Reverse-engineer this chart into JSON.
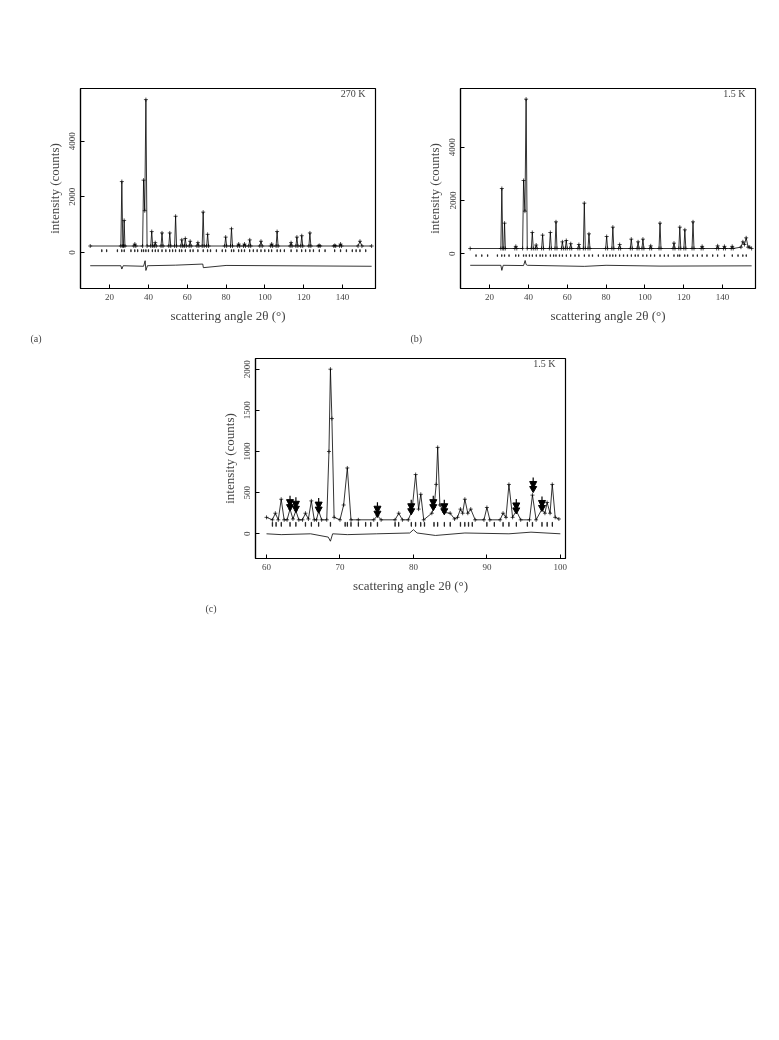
{
  "chart_data": [
    {
      "type": "line",
      "xlabel": "scattering angle 2θ (°)",
      "ylabel": "intensity (counts)",
      "annotations": [
        "270 K",
        "(a)"
      ],
      "xlim": [
        5,
        157
      ],
      "ylim": [
        -1300,
        5900
      ],
      "xticks": [
        20,
        40,
        60,
        80,
        100,
        120,
        140
      ],
      "yticks": [
        0,
        2000,
        4000
      ],
      "grid": false,
      "series": [
        {
          "marker": "cross",
          "color": "#000000",
          "x": [
            10,
            25.8,
            26.3,
            26.8,
            27.1,
            27.5,
            27.9,
            32.5,
            33,
            33.5,
            37,
            37.5,
            38.1,
            38.7,
            39.3,
            41.2,
            41.7,
            42.2,
            43,
            43.5,
            44,
            46.5,
            47,
            47.5,
            50.5,
            51,
            51.5,
            53.5,
            54,
            54.5,
            56.7,
            57.2,
            57.7,
            58.5,
            59,
            59.5,
            61,
            61.5,
            62,
            65,
            65.5,
            66,
            67.7,
            68.2,
            68.7,
            70,
            70.5,
            71,
            79.3,
            79.8,
            80.3,
            82.3,
            82.8,
            83.3,
            86,
            86.5,
            87,
            89,
            89.5,
            90,
            91.7,
            92.2,
            92.7,
            97.4,
            98,
            98.6,
            103,
            103.5,
            104,
            105.8,
            106.3,
            106.8,
            113,
            113.5,
            114,
            116,
            116.5,
            117,
            118.5,
            119,
            119.5,
            122.7,
            123.2,
            123.7,
            127.5,
            128,
            128.5,
            135.5,
            136,
            136.5,
            138.5,
            139,
            139.5,
            148,
            149,
            150,
            155
          ],
          "values": [
            230,
            230,
            2550,
            230,
            230,
            1150,
            230,
            230,
            300,
            230,
            230,
            2600,
            1500,
            5500,
            230,
            230,
            750,
            230,
            230,
            350,
            230,
            230,
            700,
            230,
            230,
            700,
            230,
            230,
            1300,
            230,
            230,
            450,
            230,
            230,
            500,
            230,
            230,
            400,
            230,
            230,
            350,
            230,
            230,
            1450,
            230,
            230,
            650,
            230,
            230,
            550,
            230,
            230,
            850,
            230,
            230,
            300,
            230,
            230,
            300,
            230,
            230,
            450,
            230,
            230,
            400,
            230,
            230,
            300,
            230,
            230,
            750,
            230,
            230,
            350,
            230,
            230,
            550,
            230,
            230,
            600,
            230,
            230,
            700,
            230,
            230,
            250,
            230,
            230,
            250,
            230,
            230,
            300,
            230,
            230,
            400,
            230,
            230
          ]
        },
        {
          "type": "bar",
          "color": "#000000",
          "x": [
            16,
            18.5,
            24,
            26.3,
            27.5,
            31,
            33,
            34.5,
            36.5,
            37.5,
            38.7,
            40,
            42,
            43.5,
            45,
            47,
            49,
            51,
            52.5,
            54,
            56,
            57.2,
            59,
            61.5,
            63,
            65.5,
            68.2,
            70.5,
            72,
            75,
            78,
            79.8,
            82.8,
            84,
            86.5,
            88,
            89.5,
            92.2,
            94,
            96,
            98,
            100,
            102,
            103.5,
            106.3,
            108,
            110,
            113.5,
            116.5,
            119,
            121,
            123.2,
            125,
            128,
            131,
            136,
            139,
            142,
            145,
            147,
            149,
            152
          ],
          "values": [
            80,
            80,
            80,
            80,
            80,
            80,
            80,
            80,
            80,
            80,
            80,
            80,
            80,
            80,
            80,
            80,
            80,
            80,
            80,
            80,
            80,
            80,
            80,
            80,
            80,
            80,
            80,
            80,
            80,
            80,
            80,
            80,
            80,
            80,
            80,
            80,
            80,
            80,
            80,
            80,
            80,
            80,
            80,
            80,
            80,
            80,
            80,
            80,
            80,
            80,
            80,
            80,
            80,
            80,
            80,
            80,
            80,
            80,
            80,
            80,
            80,
            80
          ],
          "base": [
            20,
            20,
            20,
            20,
            20,
            20,
            20,
            20,
            20,
            20,
            20,
            20,
            20,
            20,
            20,
            20,
            20,
            20,
            20,
            20,
            20,
            20,
            20,
            20,
            20,
            20,
            20,
            20,
            20,
            20,
            20,
            20,
            20,
            20,
            20,
            20,
            20,
            20,
            20,
            20,
            20,
            20,
            20,
            20,
            20,
            20,
            20,
            20,
            20,
            20,
            20,
            20,
            20,
            20,
            20,
            20,
            20,
            20,
            20,
            20,
            20,
            20
          ]
        },
        {
          "marker": "none",
          "color": "#000000",
          "x": [
            10,
            25.8,
            26.3,
            27,
            37.5,
            38.3,
            38.7,
            39.5,
            54,
            68,
            68.3,
            80,
            155
          ],
          "values": [
            -480,
            -480,
            -600,
            -480,
            -500,
            -300,
            -650,
            -480,
            -460,
            -420,
            -550,
            -470,
            -500
          ]
        }
      ]
    },
    {
      "type": "line",
      "xlabel": "scattering angle 2θ (°)",
      "ylabel": "intensity (counts)",
      "annotations": [
        "1.5 K",
        "(b)"
      ],
      "xlim": [
        5,
        157
      ],
      "ylim": [
        -1300,
        6200
      ],
      "xticks": [
        20,
        40,
        60,
        80,
        100,
        120,
        140
      ],
      "yticks": [
        0,
        2000,
        4000
      ],
      "grid": false,
      "series": [
        {
          "marker": "cross",
          "color": "#000000",
          "x": [
            10,
            25.8,
            26.3,
            26.8,
            27.3,
            27.7,
            28.1,
            33,
            33.5,
            34,
            37,
            37.5,
            38.2,
            38.8,
            39.4,
            41.5,
            42,
            42.5,
            43.5,
            44,
            44.5,
            46.8,
            47.3,
            47.8,
            50.8,
            51.3,
            51.8,
            53.7,
            54.2,
            54.7,
            57,
            57.5,
            58,
            59,
            59.5,
            60,
            61.3,
            61.8,
            62.3,
            65.5,
            66,
            66.5,
            68.3,
            68.8,
            69.3,
            70.7,
            71.2,
            71.7,
            79.8,
            80.3,
            80.8,
            83,
            83.5,
            84,
            86.5,
            87,
            87.5,
            92.5,
            93,
            93.5,
            96,
            96.5,
            97,
            98.5,
            99,
            99.5,
            102.5,
            103,
            103.5,
            107.3,
            107.8,
            108.3,
            114.5,
            115,
            115.5,
            117.5,
            118,
            118.5,
            120.1,
            120.6,
            121.1,
            124.3,
            124.8,
            125.3,
            129,
            129.5,
            130,
            137,
            137.5,
            138,
            140.5,
            141,
            141.5,
            144.5,
            145,
            145.5,
            149.5,
            150.5,
            151.3,
            152.2,
            153.2,
            154,
            155
          ],
          "values": [
            200,
            200,
            2450,
            200,
            200,
            1150,
            200,
            200,
            280,
            200,
            200,
            2750,
            1600,
            5800,
            200,
            200,
            800,
            200,
            200,
            330,
            200,
            200,
            700,
            200,
            200,
            800,
            200,
            200,
            1200,
            200,
            200,
            450,
            200,
            200,
            500,
            200,
            200,
            380,
            200,
            200,
            350,
            200,
            200,
            1900,
            200,
            200,
            750,
            200,
            200,
            650,
            200,
            200,
            1000,
            200,
            200,
            350,
            200,
            200,
            550,
            200,
            200,
            450,
            200,
            200,
            550,
            200,
            200,
            300,
            200,
            200,
            1150,
            200,
            200,
            400,
            200,
            200,
            1000,
            200,
            200,
            900,
            200,
            200,
            1200,
            200,
            200,
            280,
            200,
            200,
            300,
            200,
            200,
            280,
            200,
            200,
            280,
            200,
            250,
            450,
            350,
            600,
            250,
            250,
            200
          ]
        },
        {
          "type": "bar",
          "color": "#000000",
          "x": [
            13,
            16,
            19,
            24,
            26.3,
            27.7,
            30,
            33.5,
            35,
            37.5,
            38.8,
            40.5,
            42,
            44,
            46,
            47.3,
            49,
            51.3,
            53,
            54.2,
            56,
            57.5,
            59.5,
            61.8,
            64,
            66,
            68.8,
            71.2,
            73,
            76,
            78.5,
            80.3,
            82,
            83.5,
            85,
            87,
            89,
            91,
            93,
            95,
            96.5,
            99,
            101,
            103,
            105,
            107.8,
            110,
            112,
            115,
            117,
            118,
            120.6,
            122,
            124.8,
            127,
            129.5,
            132,
            135,
            137.5,
            141,
            145,
            148,
            150.5,
            152.2
          ],
          "values": [
            70,
            70,
            70,
            70,
            70,
            70,
            70,
            70,
            70,
            70,
            70,
            70,
            70,
            70,
            70,
            70,
            70,
            70,
            70,
            70,
            70,
            70,
            70,
            70,
            70,
            70,
            70,
            70,
            70,
            70,
            70,
            70,
            70,
            70,
            70,
            70,
            70,
            70,
            70,
            70,
            70,
            70,
            70,
            70,
            70,
            70,
            70,
            70,
            70,
            70,
            70,
            70,
            70,
            70,
            70,
            70,
            70,
            70,
            70,
            70,
            70,
            70,
            70,
            70
          ],
          "base": [
            -100,
            -100,
            -100,
            -100,
            -100,
            -100,
            -100,
            -100,
            -100,
            -100,
            -100,
            -100,
            -100,
            -100,
            -100,
            -100,
            -100,
            -100,
            -100,
            -100,
            -100,
            -100,
            -100,
            -100,
            -100,
            -100,
            -100,
            -100,
            -100,
            -100,
            -100,
            -100,
            -100,
            -100,
            -100,
            -100,
            -100,
            -100,
            -100,
            -100,
            -100,
            -100,
            -100,
            -100,
            -100,
            -100,
            -100,
            -100,
            -100,
            -100,
            -100,
            -100,
            -100,
            -100,
            -100,
            -100,
            -100,
            -100,
            -100,
            -100,
            -100,
            -100,
            -100,
            -100
          ]
        },
        {
          "marker": "none",
          "color": "#000000",
          "x": [
            10,
            25.8,
            26.3,
            27,
            37.5,
            38.3,
            38.8,
            39.5,
            68.8,
            80,
            107.8,
            155
          ],
          "values": [
            -430,
            -430,
            -620,
            -430,
            -440,
            -250,
            -400,
            -430,
            -470,
            -430,
            -460,
            -450
          ]
        }
      ]
    },
    {
      "type": "line",
      "xlabel": "scattering angle 2θ (°)",
      "ylabel": "intensity (counts)",
      "annotations": [
        "1.5 K",
        "(c)"
      ],
      "xlim": [
        58.5,
        100.7
      ],
      "ylim": [
        -300,
        2130
      ],
      "xticks": [
        60,
        70,
        80,
        90,
        100
      ],
      "yticks": [
        0,
        500,
        1000,
        1500,
        2000
      ],
      "grid": false,
      "series": [
        {
          "marker": "cross",
          "color": "#000000",
          "x": [
            60,
            60.8,
            61.2,
            61.6,
            62,
            62.4,
            62.8,
            63.2,
            63.6,
            64,
            64.4,
            64.9,
            65.3,
            65.7,
            66.1,
            66.5,
            66.8,
            67.1,
            67.5,
            68.2,
            68.5,
            68.7,
            68.9,
            69.2,
            70,
            70.5,
            71,
            71.5,
            72.5,
            74.6,
            75.1,
            75.6,
            77.5,
            78,
            78.5,
            79.3,
            79.8,
            80.3,
            80.7,
            81,
            81.4,
            82.5,
            82.8,
            83.1,
            83.3,
            83.6,
            84.2,
            85,
            85.6,
            86,
            86.4,
            86.7,
            87,
            87.4,
            87.8,
            88.4,
            89.6,
            90,
            90.4,
            91.8,
            92.2,
            92.6,
            93,
            93.5,
            94,
            94.6,
            95.8,
            96.2,
            96.7,
            97.5,
            97.9,
            98.2,
            98.6,
            98.9,
            99.3,
            99.8
          ],
          "values": [
            200,
            170,
            250,
            170,
            420,
            170,
            170,
            300,
            180,
            280,
            170,
            170,
            250,
            180,
            400,
            170,
            170,
            280,
            170,
            170,
            1000,
            2000,
            1400,
            200,
            170,
            350,
            800,
            170,
            170,
            170,
            220,
            170,
            170,
            250,
            170,
            170,
            280,
            720,
            300,
            480,
            170,
            250,
            320,
            600,
            1050,
            350,
            260,
            250,
            180,
            200,
            300,
            250,
            420,
            250,
            300,
            170,
            170,
            320,
            170,
            170,
            250,
            200,
            600,
            200,
            280,
            170,
            170,
            470,
            170,
            300,
            250,
            380,
            250,
            600,
            200,
            180
          ]
        },
        {
          "type": "bar",
          "color": "#000000",
          "x": [
            60.8,
            61.3,
            62,
            63.2,
            64,
            65.3,
            66.1,
            67.1,
            68.7,
            70.7,
            71,
            71.5,
            72.5,
            73.5,
            74.2,
            75.1,
            77.5,
            78,
            79.7,
            80.3,
            81,
            81.5,
            82.8,
            83.3,
            84.2,
            85,
            86.4,
            87,
            87.5,
            88,
            90,
            91,
            92.2,
            93,
            94,
            95.5,
            96.2,
            97.5,
            98.2,
            98.9
          ],
          "values": [
            50,
            50,
            50,
            50,
            50,
            50,
            50,
            50,
            50,
            50,
            50,
            50,
            50,
            50,
            50,
            50,
            50,
            50,
            50,
            50,
            50,
            50,
            50,
            50,
            50,
            50,
            50,
            50,
            50,
            50,
            50,
            50,
            50,
            50,
            50,
            50,
            50,
            50,
            50,
            50
          ],
          "base": [
            90,
            90,
            90,
            90,
            90,
            90,
            90,
            90,
            90,
            90,
            90,
            90,
            90,
            90,
            90,
            90,
            90,
            90,
            90,
            90,
            90,
            90,
            90,
            90,
            90,
            90,
            90,
            90,
            90,
            90,
            90,
            90,
            90,
            90,
            90,
            90,
            90,
            90,
            90,
            90
          ]
        },
        {
          "marker": "none",
          "color": "#000000",
          "x": [
            60,
            62,
            66,
            68.4,
            68.7,
            69,
            71,
            75,
            79.5,
            80,
            80.5,
            83,
            87,
            93,
            96,
            100
          ],
          "values": [
            0,
            -10,
            0,
            -40,
            -90,
            0,
            -10,
            0,
            10,
            50,
            10,
            -20,
            10,
            0,
            20,
            0
          ]
        },
        {
          "type": "scatter",
          "marker": "triangle",
          "color": "#000000",
          "x": [
            63.2,
            64,
            67.1,
            75.1,
            79.7,
            82.7,
            84.2,
            94,
            96.3,
            97.5
          ],
          "values": [
            330,
            310,
            300,
            250,
            280,
            330,
            280,
            290,
            550,
            320
          ]
        }
      ]
    }
  ]
}
